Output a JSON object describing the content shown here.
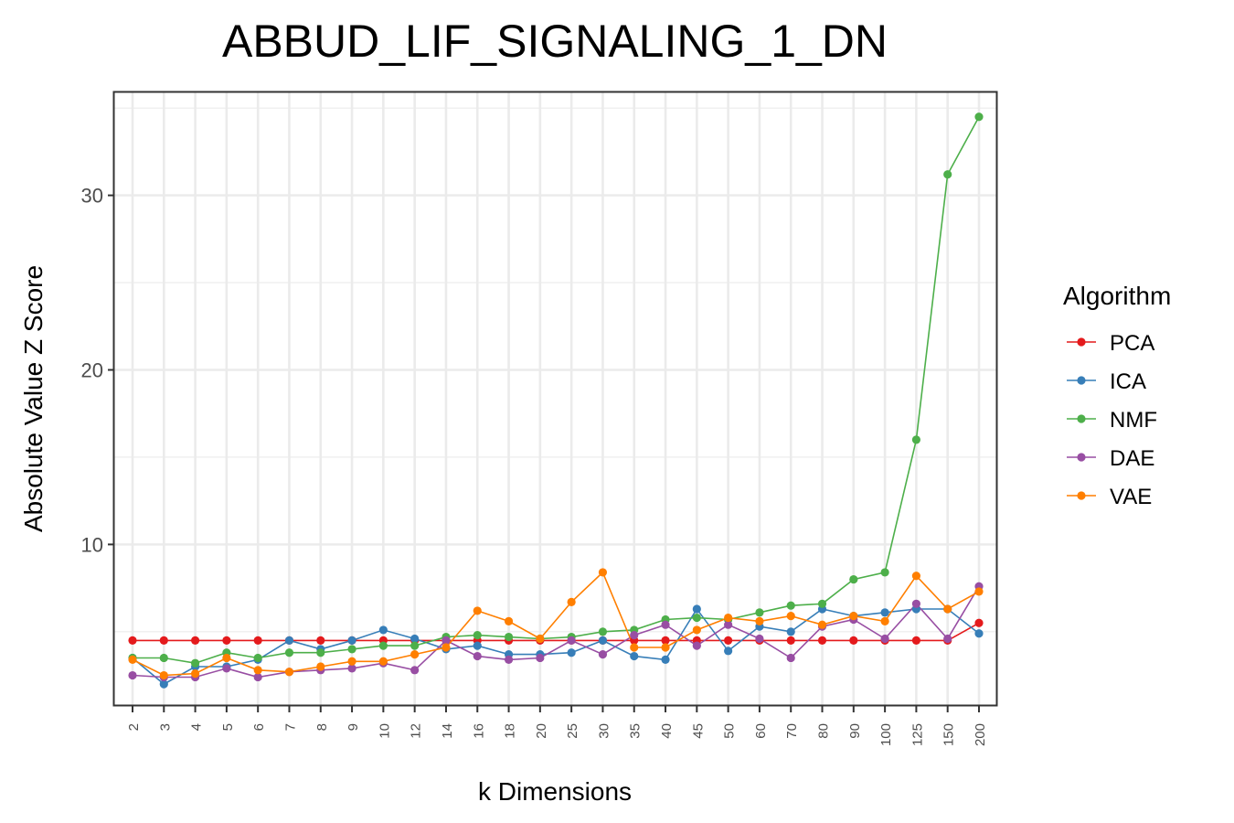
{
  "chart_data": {
    "type": "line",
    "title": "ABBUD_LIF_SIGNALING_1_DN",
    "xlabel": "k Dimensions",
    "ylabel": "Absolute Value Z Score",
    "x": [
      "2",
      "3",
      "4",
      "5",
      "6",
      "7",
      "8",
      "9",
      "10",
      "12",
      "14",
      "16",
      "18",
      "20",
      "25",
      "30",
      "35",
      "40",
      "45",
      "50",
      "60",
      "70",
      "80",
      "90",
      "100",
      "125",
      "150",
      "200"
    ],
    "ylim": [
      0.8,
      35.9
    ],
    "yticks": [
      10,
      20,
      30
    ],
    "grid": true,
    "legend": {
      "title": "Algorithm",
      "position": "right"
    },
    "series": [
      {
        "name": "PCA",
        "color": "#e41a1c",
        "values": [
          4.5,
          4.5,
          4.5,
          4.5,
          4.5,
          4.5,
          4.5,
          4.5,
          4.5,
          4.5,
          4.5,
          4.5,
          4.5,
          4.5,
          4.5,
          4.5,
          4.5,
          4.5,
          4.5,
          4.5,
          4.5,
          4.5,
          4.5,
          4.5,
          4.5,
          4.5,
          4.5,
          5.5
        ]
      },
      {
        "name": "ICA",
        "color": "#377eb8",
        "values": [
          3.5,
          2.0,
          3.0,
          3.0,
          3.4,
          4.5,
          4.0,
          4.5,
          5.1,
          4.6,
          4.0,
          4.2,
          3.7,
          3.7,
          3.8,
          4.5,
          3.6,
          3.4,
          6.3,
          3.9,
          5.3,
          5.0,
          6.3,
          5.9,
          6.1,
          6.3,
          6.3,
          4.9
        ]
      },
      {
        "name": "NMF",
        "color": "#4daf4a",
        "values": [
          3.5,
          3.5,
          3.2,
          3.8,
          3.5,
          3.8,
          3.8,
          4.0,
          4.2,
          4.2,
          4.7,
          4.8,
          4.7,
          4.6,
          4.7,
          5.0,
          5.1,
          5.7,
          5.8,
          5.7,
          6.1,
          6.5,
          6.6,
          8.0,
          8.4,
          16.0,
          31.2,
          34.5
        ]
      },
      {
        "name": "DAE",
        "color": "#984ea3",
        "values": [
          2.5,
          2.4,
          2.4,
          2.9,
          2.4,
          2.7,
          2.8,
          2.9,
          3.2,
          2.8,
          4.5,
          3.6,
          3.4,
          3.5,
          4.5,
          3.7,
          4.8,
          5.4,
          4.2,
          5.4,
          4.6,
          3.5,
          5.3,
          5.7,
          4.6,
          6.6,
          4.6,
          7.6
        ]
      },
      {
        "name": "VAE",
        "color": "#ff7f00",
        "values": [
          3.4,
          2.5,
          2.6,
          3.5,
          2.8,
          2.7,
          3.0,
          3.3,
          3.3,
          3.7,
          4.1,
          6.2,
          5.6,
          4.6,
          6.7,
          8.4,
          4.1,
          4.1,
          5.1,
          5.8,
          5.6,
          5.9,
          5.4,
          5.9,
          5.6,
          8.2,
          6.3,
          7.3
        ]
      }
    ]
  }
}
